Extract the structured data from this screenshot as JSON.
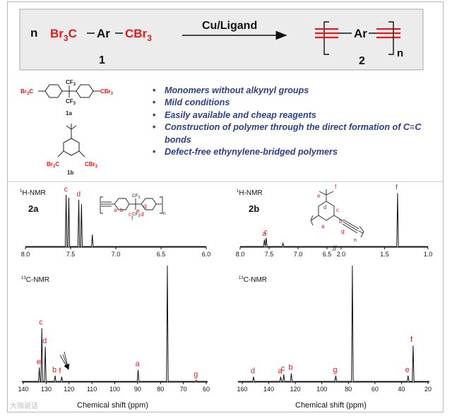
{
  "scheme": {
    "n_label": "n",
    "reactant_prefix": "Br",
    "reactant_suffix": "C",
    "reactant_sub": "3",
    "ar": "Ar",
    "reactant_c": "C",
    "reactant_br": "Br",
    "label_1": "1",
    "conditions": "Cu/Ligand",
    "product_ar": "Ar",
    "product_n": "n",
    "label_2": "2"
  },
  "monomers": {
    "cf3": "CF",
    "cf3_sub": "3",
    "cbr3": "CBr",
    "cbr3_sub": "3",
    "br3c": "Br",
    "br3c_mid": "C",
    "label_1a": "1a",
    "label_1b": "1b"
  },
  "bullets": [
    "Monomers without alkynyl groups",
    "Mild conditions",
    "Easily available and cheap reagents",
    "Construction of polymer through the direct formation of C≡C bonds",
    "Defect-free ethynylene-bridged polymers"
  ],
  "panels": {
    "h_nmr_label": "H-NMR",
    "h_sup": "1",
    "c_nmr_label": "C-NMR",
    "c_sup": "13",
    "sample_2a": "2a",
    "sample_2b": "2b",
    "xlabel": "Chemical shift (ppm)",
    "break_mark": "//"
  },
  "structure_2a": {
    "cf3": "CF",
    "cf3_sub": "3",
    "labels": [
      "a",
      "b",
      "c",
      "d",
      "e",
      "g",
      "f"
    ],
    "n": "n"
  },
  "structure_2b": {
    "labels": [
      "f",
      "e",
      "d",
      "c",
      "b",
      "a",
      "g"
    ],
    "n": "n"
  },
  "chart_data": [
    {
      "type": "line",
      "title": "1H-NMR 2a",
      "xlim": [
        8.0,
        6.0
      ],
      "x_ticks": [
        "8.0",
        "7.5",
        "7.0",
        "6.5",
        "6.0"
      ],
      "peaks": [
        {
          "x": 7.55,
          "height": 0.95,
          "label": "c"
        },
        {
          "x": 7.52,
          "height": 0.9,
          "label": ""
        },
        {
          "x": 7.41,
          "height": 0.86,
          "label": "d"
        },
        {
          "x": 7.38,
          "height": 0.78,
          "label": ""
        },
        {
          "x": 7.26,
          "height": 0.22,
          "label": ""
        }
      ]
    },
    {
      "type": "line",
      "title": "1H-NMR 2b",
      "x_ticks": [
        "8.0",
        "7.5",
        "7.0",
        "6.5",
        "2.0",
        "1.5",
        "1.0"
      ],
      "peaks": [
        {
          "x": 7.58,
          "height": 0.13,
          "label": "a"
        },
        {
          "x": 7.55,
          "height": 0.16,
          "label": "c"
        },
        {
          "x": 7.26,
          "height": 0.06,
          "label": ""
        },
        {
          "x": 1.35,
          "height": 0.98,
          "label": "f"
        }
      ]
    },
    {
      "type": "line",
      "title": "13C-NMR 2a",
      "xlabel": "Chemical shift (ppm)",
      "xlim": [
        140,
        60
      ],
      "x_ticks": [
        "140",
        "130",
        "120",
        "110",
        "100",
        "90",
        "80",
        "70",
        "60"
      ],
      "peaks": [
        {
          "x": 133.0,
          "height": 0.12,
          "label": "e"
        },
        {
          "x": 131.9,
          "height": 0.46,
          "label": "c"
        },
        {
          "x": 130.4,
          "height": 0.3,
          "label": "d"
        },
        {
          "x": 126.1,
          "height": 0.05,
          "label": "b"
        },
        {
          "x": 123.2,
          "height": 0.04,
          "label": "f"
        },
        {
          "x": 89.8,
          "height": 0.1,
          "label": "a"
        },
        {
          "x": 77.0,
          "height": 1.0,
          "label": ""
        },
        {
          "x": 64.3,
          "height": 0.01,
          "label": "g"
        }
      ]
    },
    {
      "type": "line",
      "title": "13C-NMR 2b",
      "xlabel": "Chemical shift (ppm)",
      "xlim": [
        160,
        20
      ],
      "x_ticks": [
        "160",
        "140",
        "120",
        "100",
        "80",
        "60",
        "40",
        "20"
      ],
      "peaks": [
        {
          "x": 151.5,
          "height": 0.04,
          "label": "d"
        },
        {
          "x": 131.0,
          "height": 0.04,
          "label": "a"
        },
        {
          "x": 128.7,
          "height": 0.06,
          "label": "c"
        },
        {
          "x": 123.0,
          "height": 0.07,
          "label": "b"
        },
        {
          "x": 89.5,
          "height": 0.05,
          "label": "g"
        },
        {
          "x": 77.0,
          "height": 1.0,
          "label": ""
        },
        {
          "x": 35.0,
          "height": 0.05,
          "label": "e"
        },
        {
          "x": 31.2,
          "height": 0.31,
          "label": "f"
        }
      ]
    }
  ],
  "watermark": "大咖说话"
}
